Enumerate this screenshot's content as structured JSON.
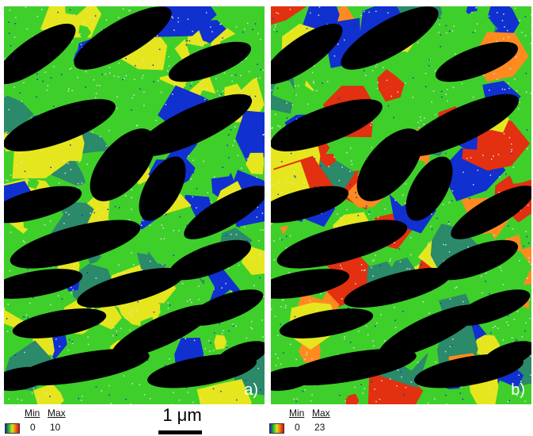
{
  "panels": [
    {
      "letter": "a)",
      "legend": {
        "min_label": "Min",
        "max_label": "Max",
        "min_value": "0",
        "max_value": "10"
      }
    },
    {
      "letter": "b)",
      "legend": {
        "min_label": "Min",
        "max_label": "Max",
        "min_value": "0",
        "max_value": "23"
      }
    }
  ],
  "scalebar": {
    "label": "1 μm"
  },
  "colors": {
    "background": "#000000",
    "green": "#3fcf2a",
    "yellow": "#e6e61e",
    "blue": "#1030d0",
    "teal": "#2a8a6a",
    "orange": "#ff8a20",
    "red": "#e23010",
    "white_speckle": "#e0e0e0"
  }
}
